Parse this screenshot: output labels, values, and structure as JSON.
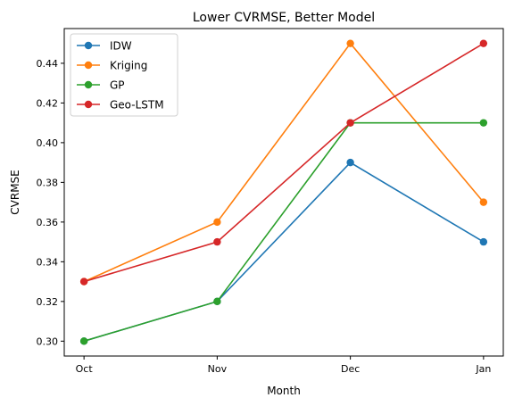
{
  "chart_data": {
    "type": "line",
    "title": "Lower CVRMSE, Better Model",
    "xlabel": "Month",
    "ylabel": "CVRMSE",
    "categories": [
      "Oct",
      "Nov",
      "Dec",
      "Jan"
    ],
    "ylim": [
      0.2925,
      0.4575
    ],
    "yticks": [
      "0.30",
      "0.32",
      "0.34",
      "0.36",
      "0.38",
      "0.40",
      "0.42",
      "0.44"
    ],
    "grid": false,
    "legend_position": "top-left",
    "series": [
      {
        "name": "IDW",
        "color": "#1f77b4",
        "values": [
          0.3,
          0.32,
          0.39,
          0.35
        ]
      },
      {
        "name": "Kriging",
        "color": "#ff7f0e",
        "values": [
          0.33,
          0.36,
          0.45,
          0.37
        ]
      },
      {
        "name": "GP",
        "color": "#2ca02c",
        "values": [
          0.3,
          0.32,
          0.41,
          0.41
        ]
      },
      {
        "name": "Geo-LSTM",
        "color": "#d62728",
        "values": [
          0.33,
          0.35,
          0.41,
          0.45
        ]
      }
    ]
  }
}
